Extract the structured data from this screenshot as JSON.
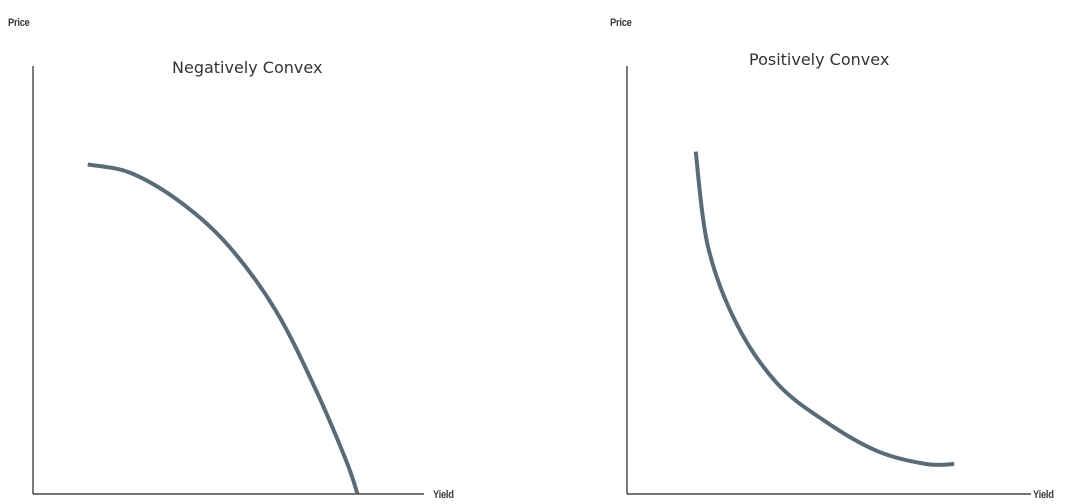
{
  "chart_data": [
    {
      "type": "line",
      "title": "Negatively Convex",
      "xlabel": "Yield",
      "ylabel": "Price",
      "ylim": [
        0,
        100
      ],
      "xlim": [
        0,
        100
      ],
      "grid": false,
      "series": [
        {
          "x": [
            14,
            25,
            38,
            50,
            62,
            72,
            80,
            83
          ],
          "y": [
            77,
            75,
            68,
            58,
            43,
            25,
            8,
            0
          ]
        }
      ],
      "colors": {
        "line": "#5a6b78",
        "axis": "#222222"
      }
    },
    {
      "type": "line",
      "title": "Positively Convex",
      "xlabel": "Yield",
      "ylabel": "Price",
      "ylim": [
        0,
        100
      ],
      "xlim": [
        0,
        100
      ],
      "grid": false,
      "series": [
        {
          "x": [
            17,
            20,
            27,
            37,
            49,
            62,
            74,
            81
          ],
          "y": [
            80,
            58,
            40,
            26,
            17,
            10,
            7,
            7
          ]
        }
      ],
      "colors": {
        "line": "#5a6b78",
        "axis": "#222222"
      }
    }
  ]
}
